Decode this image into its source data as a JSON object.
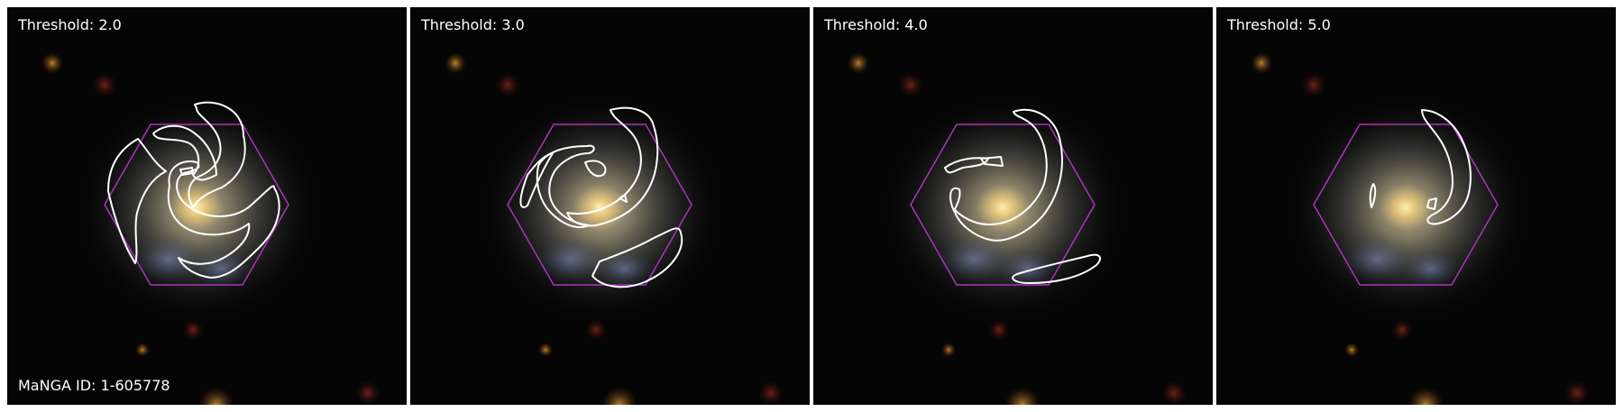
{
  "panels": [
    {
      "threshold_label": "Threshold: 2.0",
      "arms": "t2"
    },
    {
      "threshold_label": "Threshold: 3.0",
      "arms": "t3"
    },
    {
      "threshold_label": "Threshold: 4.0",
      "arms": "t4"
    },
    {
      "threshold_label": "Threshold: 5.0",
      "arms": "t5"
    }
  ],
  "galaxy_id_label": "MaNGA ID: 1-605778",
  "colors": {
    "background": "#050505",
    "hexagon": "#b030c0",
    "contour": "#ffffff",
    "core": "#f2d58a",
    "halo": "#8a8a78"
  }
}
